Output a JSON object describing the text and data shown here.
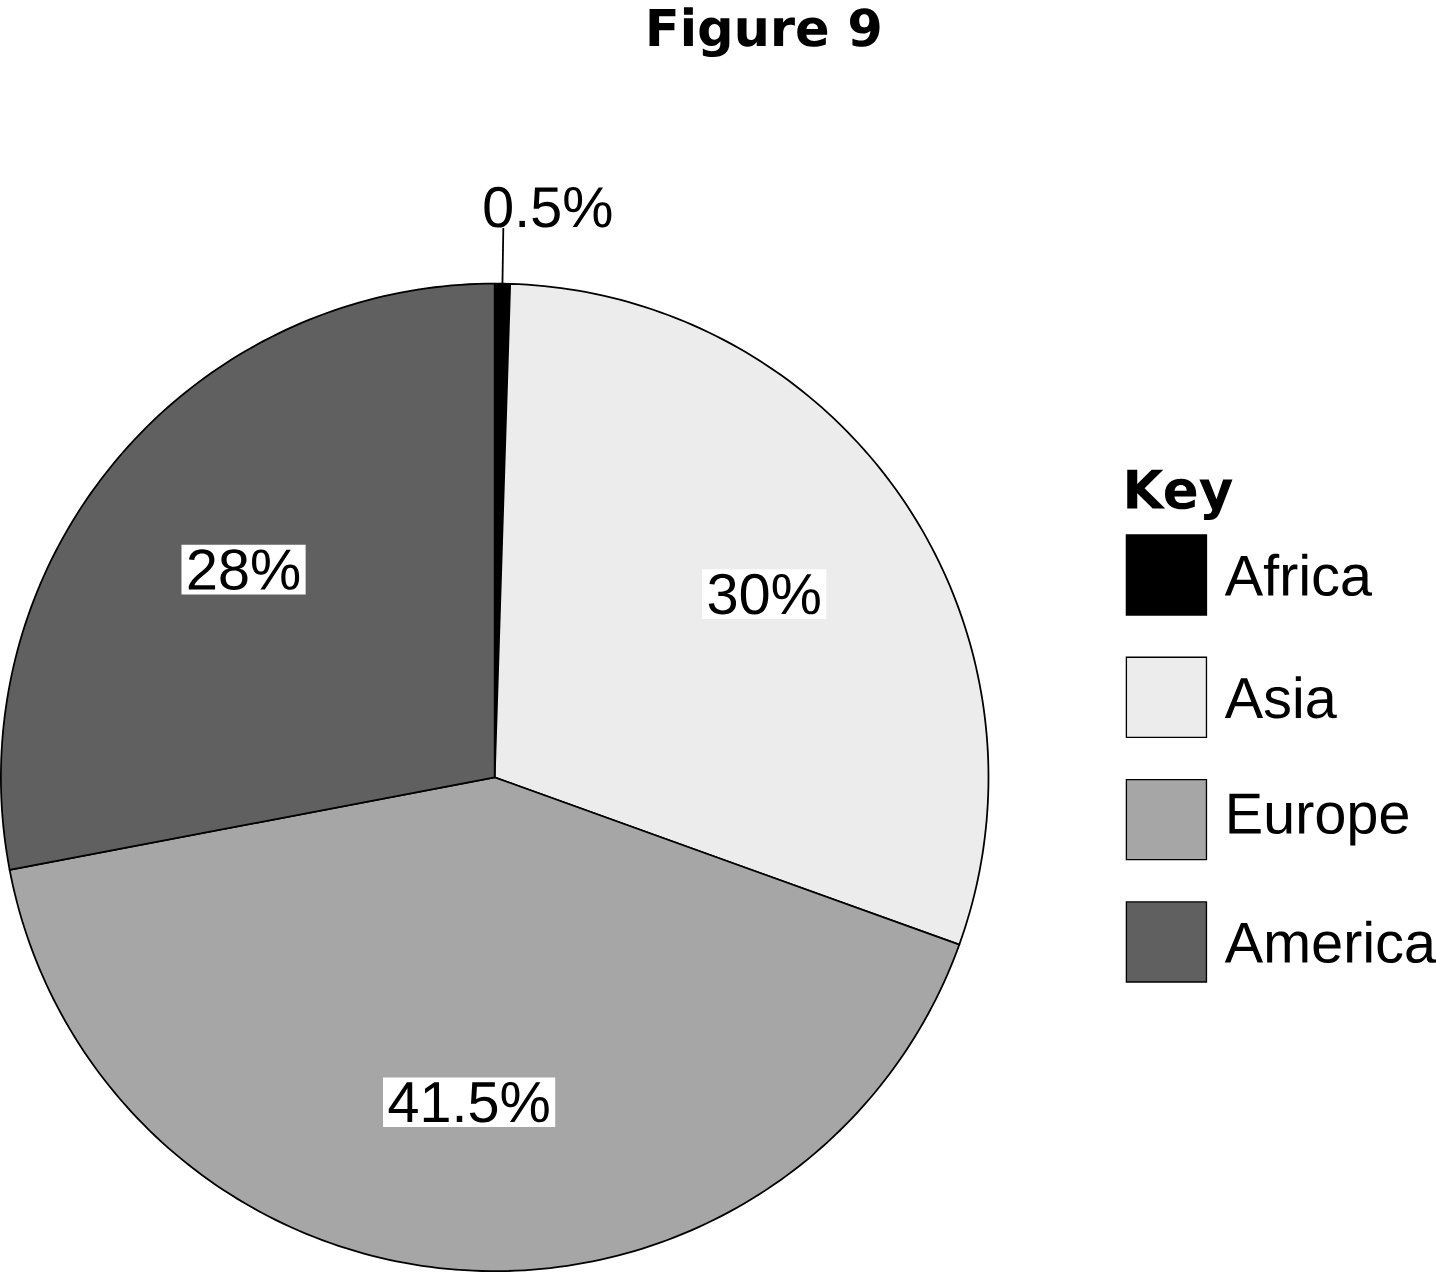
{
  "chart_data": {
    "type": "pie",
    "title": "Figure 9",
    "legend_title": "Key",
    "categories": [
      "Africa",
      "Asia",
      "Europe",
      "America"
    ],
    "values": [
      0.5,
      30,
      41.5,
      28
    ],
    "colors": [
      "#000000",
      "#ececec",
      "#a6a6a6",
      "#606060"
    ],
    "value_labels": [
      "0.5%",
      "30%",
      "41.5%",
      "28%"
    ],
    "legend": "right"
  }
}
